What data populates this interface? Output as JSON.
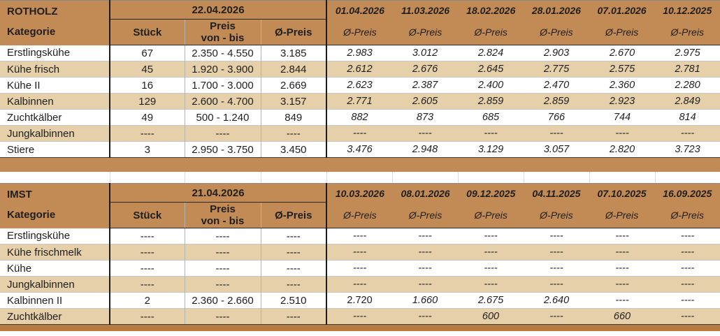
{
  "colors": {
    "header_brown": "#C28A55",
    "row_tan": "#E5D0A9",
    "bar_bottom": "#B87C42",
    "text": "#1f1f1f"
  },
  "tables": [
    {
      "name": "ROTHOLZ",
      "kategorie_label": "Kategorie",
      "current_date": "22.04.2026",
      "col_headers": {
        "stueck": "Stück",
        "preis": "Preis\nvon - bis",
        "avg": "Ø-Preis"
      },
      "history_dates": [
        "01.04.2026",
        "11.03.2026",
        "18.02.2026",
        "28.01.2026",
        "07.01.2026",
        "10.12.2025"
      ],
      "history_subheader": "Ø-Preis",
      "rows": [
        {
          "kategorie": "Erstlingskühe",
          "stueck": "67",
          "preis": "2.350 - 4.550",
          "avg": "3.185",
          "history": [
            "2.983",
            "3.012",
            "2.824",
            "2.903",
            "2.670",
            "2.975"
          ]
        },
        {
          "kategorie": "Kühe frisch",
          "stueck": "45",
          "preis": "1.920 - 3.900",
          "avg": "2.844",
          "history": [
            "2.612",
            "2.676",
            "2.645",
            "2.775",
            "2.575",
            "2.781"
          ]
        },
        {
          "kategorie": "Kühe II",
          "stueck": "16",
          "preis": "1.700 - 3.000",
          "avg": "2.669",
          "history": [
            "2.623",
            "2.387",
            "2.400",
            "2.470",
            "2.360",
            "2.280"
          ]
        },
        {
          "kategorie": "Kalbinnen",
          "stueck": "129",
          "preis": "2.600 - 4.700",
          "avg": "3.157",
          "history": [
            "2.771",
            "2.605",
            "2.859",
            "2.859",
            "2.923",
            "2.849"
          ]
        },
        {
          "kategorie": "Zuchtkälber",
          "stueck": "49",
          "preis": "500 - 1.240",
          "avg": "849",
          "history": [
            "882",
            "873",
            "685",
            "766",
            "744",
            "814"
          ]
        },
        {
          "kategorie": "Jungkalbinnen",
          "stueck": "----",
          "preis": "----",
          "avg": "----",
          "history": [
            "----",
            "----",
            "----",
            "----",
            "----",
            "----"
          ]
        },
        {
          "kategorie": "Stiere",
          "stueck": "3",
          "preis": "2.950 - 3.750",
          "avg": "3.450",
          "history": [
            "3.476",
            "2.948",
            "3.129",
            "3.057",
            "2.820",
            "3.723"
          ]
        }
      ]
    },
    {
      "name": "IMST",
      "kategorie_label": "Kategorie",
      "current_date": "21.04.2026",
      "col_headers": {
        "stueck": "Stück",
        "preis": "Preis\nvon - bis",
        "avg": "Ø-Preis"
      },
      "history_dates": [
        "10.03.2026",
        "08.01.2026",
        "09.12.2025",
        "04.11.2025",
        "07.10.2025",
        "16.09.2025"
      ],
      "history_subheader": "Ø-Preis",
      "rows": [
        {
          "kategorie": "Erstlingskühe",
          "stueck": "----",
          "preis": "----",
          "avg": "----",
          "history": [
            "----",
            "----",
            "----",
            "----",
            "----",
            "----"
          ]
        },
        {
          "kategorie": "Kühe frischmelk",
          "stueck": "----",
          "preis": "----",
          "avg": "----",
          "history": [
            "----",
            "----",
            "----",
            "----",
            "----",
            "----"
          ]
        },
        {
          "kategorie": "Kühe",
          "stueck": "----",
          "preis": "----",
          "avg": "----",
          "history": [
            "----",
            "----",
            "----",
            "----",
            "----",
            "----"
          ]
        },
        {
          "kategorie": "Jungkalbinnen",
          "stueck": "----",
          "preis": "----",
          "avg": "----",
          "history": [
            "----",
            "----",
            "----",
            "----",
            "----",
            "----"
          ]
        },
        {
          "kategorie": "Kalbinnen II",
          "stueck": "2",
          "preis": "2.360 - 2.660",
          "avg": "2.510",
          "history": [
            "2.720",
            "1.660",
            "2.675",
            "2.640",
            "----",
            "----"
          ],
          "upright": [
            0
          ]
        },
        {
          "kategorie": "Zuchtkälber",
          "stueck": "----",
          "preis": "----",
          "avg": "----",
          "history": [
            "----",
            "----",
            "600",
            "----",
            "660",
            "----"
          ]
        }
      ]
    }
  ]
}
